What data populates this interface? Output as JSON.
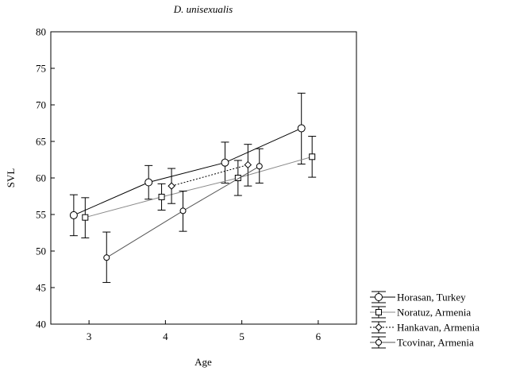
{
  "chart_data": {
    "type": "line",
    "title": "D. unisexualis",
    "xlabel": "Age",
    "ylabel": "SVL",
    "xlim": [
      2.5,
      6.5
    ],
    "ylim": [
      40,
      80
    ],
    "xticks": [
      3,
      4,
      5,
      6
    ],
    "yticks": [
      40,
      45,
      50,
      55,
      60,
      65,
      70,
      75,
      80
    ],
    "grid": false,
    "legend_position": "outside-bottom-right",
    "series": [
      {
        "name": "Horasan,  Turkey",
        "marker": "circle-large",
        "line": "solid",
        "color": "#000000",
        "x": [
          2.8,
          3.78,
          4.78,
          5.78
        ],
        "y": [
          54.9,
          59.4,
          62.1,
          66.8
        ],
        "err_low": [
          52.1,
          57.1,
          59.3,
          61.9
        ],
        "err_high": [
          57.7,
          61.7,
          64.9,
          71.6
        ]
      },
      {
        "name": "Noratuz, Armenia",
        "marker": "square",
        "line": "solid",
        "color": "#8a8a8a",
        "x": [
          2.95,
          3.95,
          4.95,
          5.92
        ],
        "y": [
          54.6,
          57.4,
          60.0,
          62.9
        ],
        "err_low": [
          51.8,
          55.6,
          57.6,
          60.1
        ],
        "err_high": [
          57.3,
          59.2,
          62.4,
          65.7
        ]
      },
      {
        "name": "Hankavan, Armenia",
        "marker": "diamond",
        "line": "dotted",
        "color": "#000000",
        "x": [
          4.08,
          5.08
        ],
        "y": [
          58.9,
          61.8
        ],
        "err_low": [
          56.5,
          58.9
        ],
        "err_high": [
          61.3,
          64.6
        ]
      },
      {
        "name": "Tcovinar, Armenia",
        "marker": "circle-small",
        "line": "solid",
        "color": "#555555",
        "x": [
          3.23,
          4.23,
          5.23
        ],
        "y": [
          49.1,
          55.5,
          61.6
        ],
        "err_low": [
          45.7,
          52.7,
          59.3
        ],
        "err_high": [
          52.6,
          58.2,
          64.0
        ]
      }
    ]
  }
}
